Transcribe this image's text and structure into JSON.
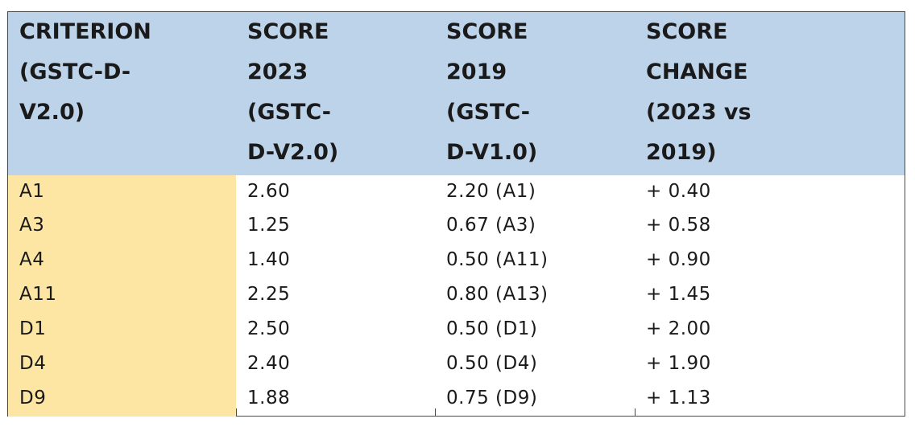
{
  "table": {
    "headers": [
      {
        "lines": [
          "CRITERION",
          "(GSTC-D-",
          "V2.0)"
        ]
      },
      {
        "lines": [
          "SCORE",
          "2023",
          "(GSTC-",
          "D-V2.0)"
        ]
      },
      {
        "lines": [
          "SCORE",
          "2019",
          "(GSTC-",
          "D-V1.0)"
        ]
      },
      {
        "lines": [
          "SCORE",
          "CHANGE",
          "(2023 vs",
          "2019)"
        ]
      }
    ],
    "rows": [
      {
        "criterion": "A1",
        "score_2023": "2.60",
        "score_2019": "2.20 (A1)",
        "change": "+ 0.40"
      },
      {
        "criterion": "A3",
        "score_2023": "1.25",
        "score_2019": "0.67 (A3)",
        "change": "+ 0.58"
      },
      {
        "criterion": "A4",
        "score_2023": "1.40",
        "score_2019": "0.50 (A11)",
        "change": "+ 0.90"
      },
      {
        "criterion": "A11",
        "score_2023": "2.25",
        "score_2019": "0.80 (A13)",
        "change": "+ 1.45"
      },
      {
        "criterion": "D1",
        "score_2023": "2.50",
        "score_2019": "0.50 (D1)",
        "change": "+ 2.00"
      },
      {
        "criterion": "D4",
        "score_2023": "2.40",
        "score_2019": "0.50 (D4)",
        "change": "+ 1.90"
      },
      {
        "criterion": "D9",
        "score_2023": "1.88",
        "score_2019": "0.75 (D9)",
        "change": "+ 1.13"
      }
    ]
  },
  "colors": {
    "header_bg": "#bdd3ea",
    "criterion_bg": "#fde6a4",
    "border": "#4a4a4a",
    "text": "#1a1a1a"
  }
}
